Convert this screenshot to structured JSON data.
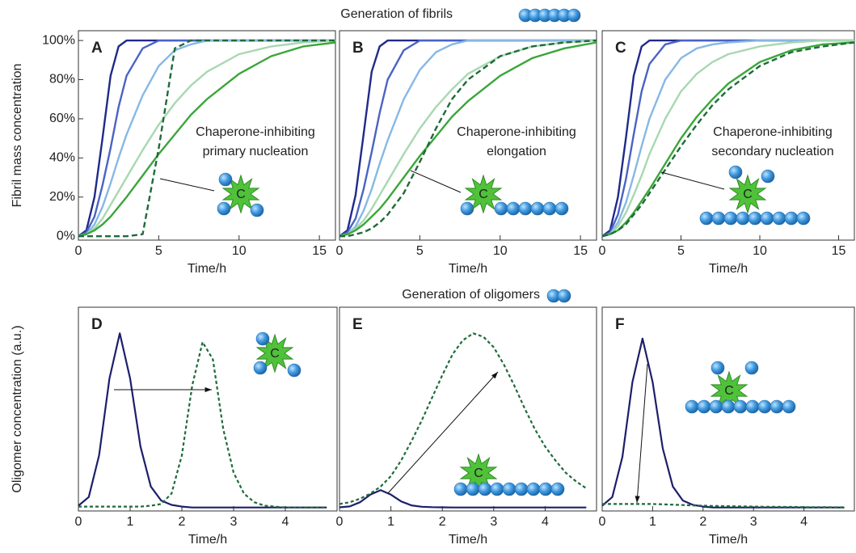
{
  "sections": [
    "Generation of fibrils",
    "Generation of oligomers"
  ],
  "chart_data": [
    {
      "type": "line",
      "panel": "A",
      "ylabel": "Fibril mass concentration",
      "xlabel": "Time/h",
      "annotation": [
        "Chaperone-inhibiting",
        "primary nucleation"
      ],
      "icon_label": "C",
      "x": [
        0,
        0.5,
        1,
        1.5,
        2,
        2.5,
        3,
        4,
        5,
        6,
        7,
        8,
        10,
        12,
        14,
        16
      ],
      "xlim": [
        0,
        16
      ],
      "xticks": [
        0,
        5,
        10,
        15
      ],
      "ylim": [
        -2,
        105
      ],
      "yticks": [
        {
          "value": 0,
          "label": "0%"
        },
        {
          "value": 20,
          "label": "20%"
        },
        {
          "value": 40,
          "label": "40%"
        },
        {
          "value": 60,
          "label": "60%"
        },
        {
          "value": 80,
          "label": "80%"
        },
        {
          "value": 100,
          "label": "100%"
        }
      ],
      "series": [
        {
          "color": "#1f2a8a",
          "style": "solid",
          "values": [
            0,
            3,
            20,
            50,
            82,
            97,
            100,
            100,
            100,
            100,
            100,
            100,
            100,
            100,
            100,
            100
          ]
        },
        {
          "color": "#4a63c4",
          "style": "solid",
          "values": [
            0,
            2,
            10,
            26,
            45,
            66,
            82,
            96,
            100,
            100,
            100,
            100,
            100,
            100,
            100,
            100
          ]
        },
        {
          "color": "#86b8e6",
          "style": "solid",
          "values": [
            0,
            1,
            6,
            15,
            27,
            40,
            52,
            72,
            87,
            95,
            98,
            100,
            100,
            100,
            100,
            100
          ]
        },
        {
          "color": "#a8d8b0",
          "style": "solid",
          "values": [
            0,
            1,
            4,
            9,
            16,
            23,
            30,
            44,
            57,
            68,
            77,
            84,
            93,
            97,
            99,
            100
          ]
        },
        {
          "color": "#3aa63a",
          "style": "solid",
          "values": [
            0,
            1,
            3,
            6,
            10,
            15,
            20,
            31,
            42,
            52,
            62,
            70,
            83,
            92,
            97,
            99
          ]
        },
        {
          "color": "#1e6b3a",
          "style": "dashed",
          "values": [
            0,
            0,
            0,
            0,
            0,
            0,
            0,
            1,
            45,
            96,
            100,
            100,
            100,
            100,
            100,
            100
          ]
        }
      ]
    },
    {
      "type": "line",
      "panel": "B",
      "xlabel": "Time/h",
      "annotation": [
        "Chaperone-inhibiting",
        "elongation"
      ],
      "icon_label": "C",
      "x": [
        0,
        0.5,
        1,
        1.5,
        2,
        2.5,
        3,
        4,
        5,
        6,
        7,
        8,
        10,
        12,
        14,
        16
      ],
      "xlim": [
        0,
        16
      ],
      "xticks": [
        0,
        5,
        10,
        15
      ],
      "ylim": [
        -2,
        105
      ],
      "series": [
        {
          "color": "#1f2a8a",
          "style": "solid",
          "values": [
            0,
            3,
            21,
            52,
            84,
            97,
            100,
            100,
            100,
            100,
            100,
            100,
            100,
            100,
            100,
            100
          ]
        },
        {
          "color": "#4a63c4",
          "style": "solid",
          "values": [
            0,
            2,
            9,
            24,
            43,
            63,
            80,
            95,
            100,
            100,
            100,
            100,
            100,
            100,
            100,
            100
          ]
        },
        {
          "color": "#86b8e6",
          "style": "solid",
          "values": [
            0,
            1,
            5,
            13,
            24,
            37,
            49,
            70,
            85,
            94,
            98,
            100,
            100,
            100,
            100,
            100
          ]
        },
        {
          "color": "#a8d8b0",
          "style": "solid",
          "values": [
            0,
            1,
            4,
            8,
            14,
            21,
            28,
            42,
            55,
            66,
            75,
            83,
            92,
            97,
            99,
            100
          ]
        },
        {
          "color": "#3aa63a",
          "style": "solid",
          "values": [
            0,
            1,
            3,
            6,
            10,
            14,
            19,
            30,
            41,
            51,
            61,
            69,
            82,
            91,
            96,
            99
          ]
        },
        {
          "color": "#1e6b3a",
          "style": "dashed",
          "values": [
            0,
            0,
            1,
            2,
            4,
            7,
            11,
            22,
            38,
            55,
            70,
            80,
            92,
            97,
            99,
            100
          ]
        }
      ]
    },
    {
      "type": "line",
      "panel": "C",
      "xlabel": "Time/h",
      "annotation": [
        "Chaperone-inhibiting",
        "secondary nucleation"
      ],
      "icon_label": "C",
      "x": [
        0,
        0.5,
        1,
        1.5,
        2,
        2.5,
        3,
        4,
        5,
        6,
        7,
        8,
        10,
        12,
        14,
        16
      ],
      "xlim": [
        0,
        16
      ],
      "xticks": [
        0,
        5,
        10,
        15
      ],
      "ylim": [
        -2,
        105
      ],
      "series": [
        {
          "color": "#1f2a8a",
          "style": "solid",
          "values": [
            0,
            3,
            20,
            50,
            82,
            97,
            100,
            100,
            100,
            100,
            100,
            100,
            100,
            100,
            100,
            100
          ]
        },
        {
          "color": "#4a63c4",
          "style": "solid",
          "values": [
            0,
            2,
            11,
            29,
            52,
            74,
            88,
            98,
            100,
            100,
            100,
            100,
            100,
            100,
            100,
            100
          ]
        },
        {
          "color": "#86b8e6",
          "style": "solid",
          "values": [
            0,
            1,
            7,
            17,
            31,
            46,
            60,
            80,
            91,
            96,
            98,
            99,
            100,
            100,
            100,
            100
          ]
        },
        {
          "color": "#a8d8b0",
          "style": "solid",
          "values": [
            0,
            1,
            5,
            12,
            21,
            31,
            42,
            60,
            74,
            83,
            89,
            93,
            97,
            99,
            100,
            100
          ]
        },
        {
          "color": "#3aa63a",
          "style": "solid",
          "values": [
            0,
            1,
            3,
            7,
            12,
            18,
            24,
            37,
            50,
            61,
            70,
            78,
            89,
            95,
            98,
            99
          ]
        },
        {
          "color": "#1e6b3a",
          "style": "dashed",
          "values": [
            0,
            1,
            3,
            6,
            11,
            16,
            22,
            34,
            46,
            57,
            67,
            75,
            87,
            94,
            97,
            99
          ]
        }
      ]
    },
    {
      "type": "line",
      "panel": "D",
      "ylabel": "Oligomer concentration (a.u.)",
      "xlabel": "Time/h",
      "icon_label": "C",
      "x": [
        0,
        0.2,
        0.4,
        0.6,
        0.8,
        1,
        1.2,
        1.4,
        1.6,
        1.8,
        2,
        2.2,
        2.4,
        2.6,
        2.8,
        3,
        3.2,
        3.4,
        3.6,
        3.8,
        4,
        4.2,
        4.4,
        4.6,
        4.8
      ],
      "xlim": [
        0,
        5
      ],
      "xticks": [
        0,
        1,
        2,
        3,
        4
      ],
      "ylim": [
        -0.02,
        1.15
      ],
      "series": [
        {
          "color": "#1c1f6b",
          "style": "solid",
          "values": [
            0.01,
            0.06,
            0.3,
            0.74,
            1,
            0.74,
            0.35,
            0.12,
            0.04,
            0.015,
            0.005,
            0,
            0,
            0,
            0,
            0,
            0,
            0,
            0,
            0,
            0,
            0,
            0,
            0,
            0
          ]
        },
        {
          "color": "#1e6b3a",
          "style": "dotted",
          "values": [
            0.005,
            0.005,
            0.005,
            0.005,
            0.005,
            0.005,
            0.005,
            0.01,
            0.02,
            0.08,
            0.3,
            0.7,
            0.95,
            0.85,
            0.45,
            0.2,
            0.08,
            0.03,
            0.01,
            0.005,
            0,
            0,
            0,
            0,
            0
          ]
        }
      ]
    },
    {
      "type": "line",
      "panel": "E",
      "xlabel": "Time/h",
      "icon_label": "C",
      "x": [
        0,
        0.2,
        0.4,
        0.6,
        0.8,
        1,
        1.2,
        1.4,
        1.6,
        1.8,
        2,
        2.2,
        2.4,
        2.6,
        2.8,
        3,
        3.2,
        3.4,
        3.6,
        3.8,
        4,
        4.2,
        4.4,
        4.6,
        4.8
      ],
      "xlim": [
        0,
        5
      ],
      "xticks": [
        0,
        1,
        2,
        3,
        4
      ],
      "ylim": [
        -0.02,
        1.15
      ],
      "series": [
        {
          "color": "#1c1f6b",
          "style": "solid",
          "values": [
            0.001,
            0.006,
            0.03,
            0.074,
            0.1,
            0.074,
            0.035,
            0.012,
            0.004,
            0.002,
            0.001,
            0,
            0,
            0,
            0,
            0,
            0,
            0,
            0,
            0,
            0,
            0,
            0,
            0,
            0
          ]
        },
        {
          "color": "#1e6b3a",
          "style": "dotted",
          "values": [
            0.02,
            0.03,
            0.05,
            0.08,
            0.12,
            0.18,
            0.27,
            0.38,
            0.5,
            0.63,
            0.76,
            0.88,
            0.96,
            1,
            0.98,
            0.92,
            0.82,
            0.7,
            0.57,
            0.45,
            0.35,
            0.27,
            0.2,
            0.15,
            0.11
          ]
        }
      ]
    },
    {
      "type": "line",
      "panel": "F",
      "xlabel": "Time/h",
      "icon_label": "C",
      "x": [
        0,
        0.2,
        0.4,
        0.6,
        0.8,
        1,
        1.2,
        1.4,
        1.6,
        1.8,
        2,
        2.2,
        2.4,
        2.6,
        2.8,
        3,
        3.2,
        3.4,
        3.6,
        3.8,
        4,
        4.2,
        4.4,
        4.6,
        4.8
      ],
      "xlim": [
        0,
        5
      ],
      "xticks": [
        0,
        1,
        2,
        3,
        4
      ],
      "ylim": [
        -0.02,
        1.15
      ],
      "series": [
        {
          "color": "#1c1f6b",
          "style": "solid",
          "values": [
            0.01,
            0.06,
            0.29,
            0.72,
            0.97,
            0.72,
            0.34,
            0.12,
            0.04,
            0.015,
            0.005,
            0,
            0,
            0,
            0,
            0,
            0,
            0,
            0,
            0,
            0,
            0,
            0,
            0,
            0
          ]
        },
        {
          "color": "#1e6b3a",
          "style": "dotted",
          "values": [
            0.02,
            0.02,
            0.02,
            0.02,
            0.02,
            0.02,
            0.018,
            0.016,
            0.014,
            0.012,
            0.01,
            0.009,
            0.008,
            0.007,
            0.006,
            0.005,
            0.004,
            0.004,
            0.003,
            0.003,
            0.002,
            0.002,
            0.002,
            0.001,
            0.001
          ]
        }
      ]
    }
  ]
}
